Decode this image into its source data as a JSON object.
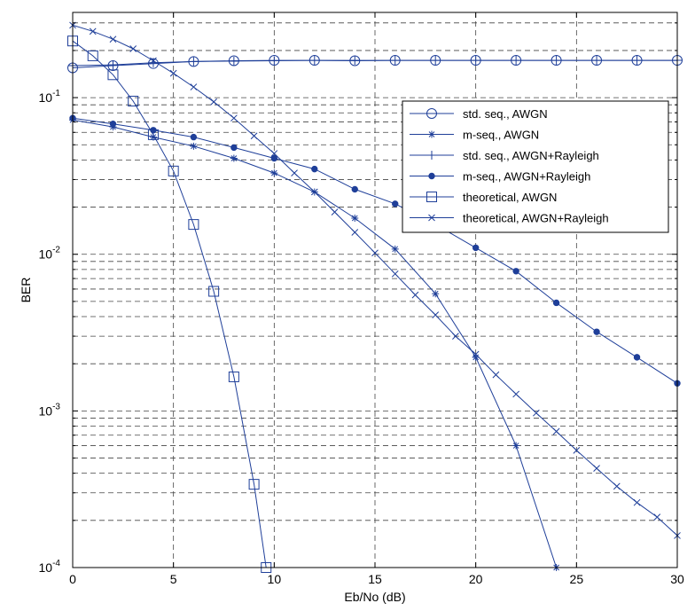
{
  "chart_data": {
    "type": "line",
    "title": "",
    "xlabel": "Eb/No (dB)",
    "ylabel": "BER",
    "xlim": [
      0,
      30
    ],
    "ylim": [
      0.0001,
      0.35
    ],
    "yscale": "log",
    "grid": true,
    "legend_position": "top-right",
    "x_ticks": [
      "0",
      "5",
      "10",
      "15",
      "20",
      "25",
      "30"
    ],
    "y_ticks": [
      {
        "base": "10",
        "exp": "-1",
        "value": 0.1
      },
      {
        "base": "10",
        "exp": "-2",
        "value": 0.01
      },
      {
        "base": "10",
        "exp": "-3",
        "value": 0.001
      },
      {
        "base": "10",
        "exp": "-4",
        "value": 0.0001
      }
    ],
    "series": [
      {
        "name": "std. seq., AWGN",
        "marker": "circle",
        "x": [
          0,
          2,
          4,
          6,
          8,
          10,
          12,
          14,
          16,
          18,
          20,
          22,
          24,
          26,
          28,
          30
        ],
        "y": [
          0.155,
          0.16,
          0.165,
          0.17,
          0.172,
          0.173,
          0.173,
          0.172,
          0.173,
          0.173,
          0.173,
          0.173,
          0.173,
          0.173,
          0.173,
          0.173
        ]
      },
      {
        "name": "m-seq., AWGN",
        "marker": "star",
        "x": [
          0,
          2,
          4,
          6,
          8,
          10,
          12,
          14,
          16,
          18,
          20,
          22,
          24
        ],
        "y": [
          0.072,
          0.065,
          0.056,
          0.049,
          0.041,
          0.033,
          0.025,
          0.017,
          0.0108,
          0.0056,
          0.0022,
          0.0006,
          0.0001
        ]
      },
      {
        "name": "std. seq., AWGN+Rayleigh",
        "marker": "plus",
        "x": [
          0,
          2,
          4,
          6,
          8,
          10,
          12,
          14,
          16,
          18,
          20,
          22,
          24,
          26,
          28,
          30
        ],
        "y": [
          0.16,
          0.162,
          0.167,
          0.17,
          0.171,
          0.172,
          0.173,
          0.173,
          0.173,
          0.173,
          0.173,
          0.173,
          0.173,
          0.173,
          0.173,
          0.173
        ]
      },
      {
        "name": "m-seq., AWGN+Rayleigh",
        "marker": "dot",
        "x": [
          0,
          2,
          4,
          6,
          8,
          10,
          12,
          14,
          16,
          18,
          20,
          22,
          24,
          26,
          28,
          30
        ],
        "y": [
          0.074,
          0.068,
          0.062,
          0.056,
          0.048,
          0.041,
          0.035,
          0.026,
          0.021,
          0.0155,
          0.011,
          0.0078,
          0.0049,
          0.0032,
          0.0022,
          0.0015
        ]
      },
      {
        "name": "theoretical, AWGN",
        "marker": "square",
        "x": [
          0,
          1,
          2,
          3,
          4,
          5,
          6,
          7,
          8,
          9,
          9.6
        ],
        "y": [
          0.23,
          0.185,
          0.14,
          0.095,
          0.058,
          0.034,
          0.0155,
          0.0058,
          0.00165,
          0.00034,
          0.0001
        ]
      },
      {
        "name": "theoretical, AWGN+Rayleigh",
        "marker": "x",
        "x": [
          0,
          1,
          2,
          3,
          4,
          5,
          6,
          7,
          8,
          9,
          10,
          11,
          12,
          13,
          14,
          15,
          16,
          17,
          18,
          19,
          20,
          21,
          22,
          23,
          24,
          25,
          26,
          27,
          28,
          29,
          30
        ],
        "y": [
          0.29,
          0.265,
          0.236,
          0.205,
          0.172,
          0.143,
          0.117,
          0.094,
          0.074,
          0.057,
          0.044,
          0.033,
          0.025,
          0.0186,
          0.0138,
          0.0102,
          0.0075,
          0.0055,
          0.0041,
          0.003,
          0.0023,
          0.0017,
          0.00128,
          0.00097,
          0.00074,
          0.00056,
          0.00043,
          0.00033,
          0.00026,
          0.00021,
          0.00016
        ]
      }
    ]
  },
  "colors": {
    "series": "#1f3f99",
    "axis": "#000000",
    "grid": "#444444",
    "background": "#ffffff"
  }
}
